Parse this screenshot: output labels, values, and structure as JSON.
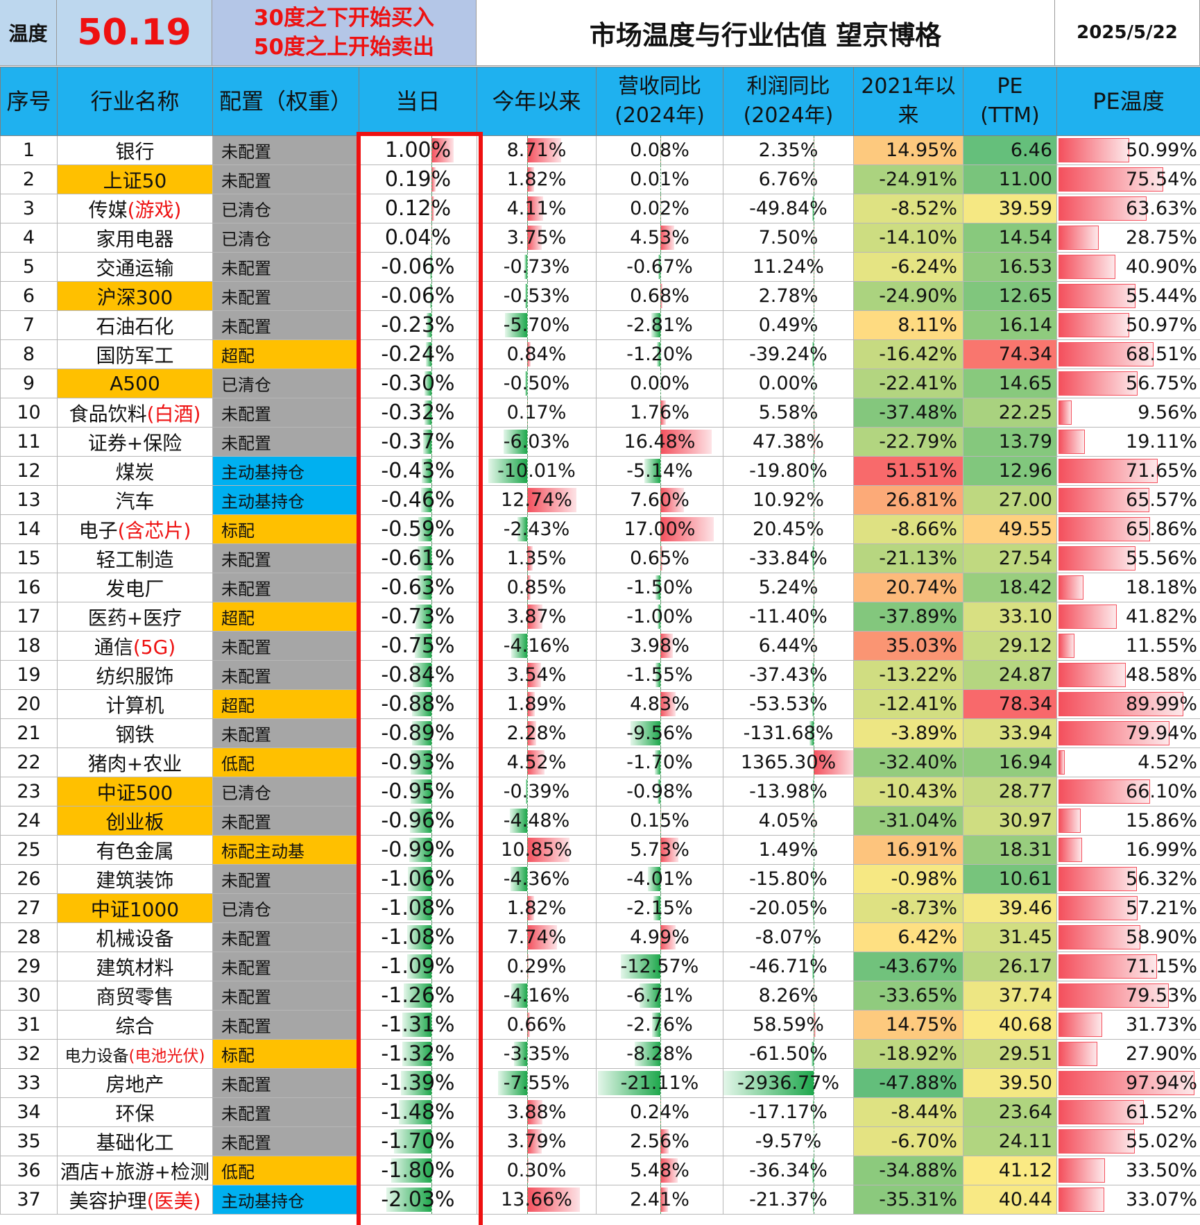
{
  "header": {
    "temp_label": "温度",
    "temp_value": "50.19",
    "rule_line1": "30度之下开始买入",
    "rule_line2": "50度之上开始卖出",
    "title": "市场温度与行业估值 望京博格",
    "date": "2025/5/22"
  },
  "columns": {
    "seq": "序号",
    "name": "行业名称",
    "alloc": "配置（权重）",
    "today": "当日",
    "ytd": "今年以来",
    "rev_1": "营收同比",
    "rev_2": "(2024年)",
    "profit_1": "利润同比",
    "profit_2": "(2024年)",
    "since_1": "2021年以",
    "since_2": "来",
    "pe_1": "PE",
    "pe_2": "(TTM)",
    "pe_temp": "PE温度"
  },
  "colors": {
    "header_blue": "#1fb1ef",
    "temp_red": "#ee1111",
    "yellow": "#ffc000",
    "gray": "#a6a6a6",
    "blue": "#00b0f0",
    "heat_green": "#63be7b",
    "heat_yellow": "#ffeb84",
    "heat_red": "#f8696b"
  },
  "rows": [
    {
      "seq": "1",
      "name": "银行",
      "hl": "",
      "name_yellow": false,
      "alloc": "未配置",
      "alloc_color": "gray",
      "today": "1.00%",
      "ytd": "8.71%",
      "rev": "0.08%",
      "profit": "2.35%",
      "since": "14.95%",
      "pe": "6.46",
      "pe_temp": "50.99%"
    },
    {
      "seq": "2",
      "name": "上证50",
      "hl": "",
      "name_yellow": true,
      "alloc": "未配置",
      "alloc_color": "gray",
      "today": "0.19%",
      "ytd": "1.82%",
      "rev": "0.01%",
      "profit": "6.76%",
      "since": "-24.91%",
      "pe": "11.00",
      "pe_temp": "75.54%"
    },
    {
      "seq": "3",
      "name": "传媒",
      "hl": "(游戏)",
      "name_yellow": false,
      "alloc": "已清仓",
      "alloc_color": "gray",
      "today": "0.12%",
      "ytd": "4.11%",
      "rev": "0.02%",
      "profit": "-49.84%",
      "since": "-8.52%",
      "pe": "39.59",
      "pe_temp": "63.63%"
    },
    {
      "seq": "4",
      "name": "家用电器",
      "hl": "",
      "name_yellow": false,
      "alloc": "已清仓",
      "alloc_color": "gray",
      "today": "0.04%",
      "ytd": "3.75%",
      "rev": "4.53%",
      "profit": "7.50%",
      "since": "-14.10%",
      "pe": "14.54",
      "pe_temp": "28.75%"
    },
    {
      "seq": "5",
      "name": "交通运输",
      "hl": "",
      "name_yellow": false,
      "alloc": "未配置",
      "alloc_color": "gray",
      "today": "-0.06%",
      "ytd": "-0.73%",
      "rev": "-0.67%",
      "profit": "11.24%",
      "since": "-6.24%",
      "pe": "16.53",
      "pe_temp": "40.90%"
    },
    {
      "seq": "6",
      "name": "沪深300",
      "hl": "",
      "name_yellow": true,
      "alloc": "未配置",
      "alloc_color": "gray",
      "today": "-0.06%",
      "ytd": "-0.53%",
      "rev": "0.68%",
      "profit": "2.78%",
      "since": "-24.90%",
      "pe": "12.65",
      "pe_temp": "55.44%"
    },
    {
      "seq": "7",
      "name": "石油石化",
      "hl": "",
      "name_yellow": false,
      "alloc": "未配置",
      "alloc_color": "gray",
      "today": "-0.23%",
      "ytd": "-5.70%",
      "rev": "-2.81%",
      "profit": "0.49%",
      "since": "8.11%",
      "pe": "16.14",
      "pe_temp": "50.97%"
    },
    {
      "seq": "8",
      "name": "国防军工",
      "hl": "",
      "name_yellow": false,
      "alloc": "超配",
      "alloc_color": "yellow",
      "today": "-0.24%",
      "ytd": "0.84%",
      "rev": "-1.20%",
      "profit": "-39.24%",
      "since": "-16.42%",
      "pe": "74.34",
      "pe_temp": "68.51%"
    },
    {
      "seq": "9",
      "name": "A500",
      "hl": "",
      "name_yellow": true,
      "alloc": "已清仓",
      "alloc_color": "gray",
      "today": "-0.30%",
      "ytd": "-0.50%",
      "rev": "0.00%",
      "profit": "0.00%",
      "since": "-22.41%",
      "pe": "14.65",
      "pe_temp": "56.75%"
    },
    {
      "seq": "10",
      "name": "食品饮料",
      "hl": "(白酒)",
      "name_yellow": false,
      "alloc": "未配置",
      "alloc_color": "gray",
      "today": "-0.32%",
      "ytd": "0.17%",
      "rev": "1.76%",
      "profit": "5.58%",
      "since": "-37.48%",
      "pe": "22.25",
      "pe_temp": "9.56%"
    },
    {
      "seq": "11",
      "name": "证券+保险",
      "hl": "",
      "name_yellow": false,
      "alloc": "未配置",
      "alloc_color": "gray",
      "today": "-0.37%",
      "ytd": "-6.03%",
      "rev": "16.48%",
      "profit": "47.38%",
      "since": "-22.79%",
      "pe": "13.79",
      "pe_temp": "19.11%"
    },
    {
      "seq": "12",
      "name": "煤炭",
      "hl": "",
      "name_yellow": false,
      "alloc": "主动基持仓",
      "alloc_color": "blue",
      "today": "-0.43%",
      "ytd": "-10.01%",
      "rev": "-5.14%",
      "profit": "-19.80%",
      "since": "51.51%",
      "pe": "12.96",
      "pe_temp": "71.65%"
    },
    {
      "seq": "13",
      "name": "汽车",
      "hl": "",
      "name_yellow": false,
      "alloc": "主动基持仓",
      "alloc_color": "blue",
      "today": "-0.46%",
      "ytd": "12.74%",
      "rev": "7.60%",
      "profit": "10.92%",
      "since": "26.81%",
      "pe": "27.00",
      "pe_temp": "65.57%"
    },
    {
      "seq": "14",
      "name": "电子",
      "hl": "(含芯片)",
      "name_yellow": false,
      "alloc": "标配",
      "alloc_color": "yellow",
      "today": "-0.59%",
      "ytd": "-2.43%",
      "rev": "17.00%",
      "profit": "20.45%",
      "since": "-8.66%",
      "pe": "49.55",
      "pe_temp": "65.86%"
    },
    {
      "seq": "15",
      "name": "轻工制造",
      "hl": "",
      "name_yellow": false,
      "alloc": "未配置",
      "alloc_color": "gray",
      "today": "-0.61%",
      "ytd": "1.35%",
      "rev": "0.65%",
      "profit": "-33.84%",
      "since": "-21.13%",
      "pe": "27.54",
      "pe_temp": "55.56%"
    },
    {
      "seq": "16",
      "name": "发电厂",
      "hl": "",
      "name_yellow": false,
      "alloc": "未配置",
      "alloc_color": "gray",
      "today": "-0.63%",
      "ytd": "0.85%",
      "rev": "-1.50%",
      "profit": "5.24%",
      "since": "20.74%",
      "pe": "18.42",
      "pe_temp": "18.18%"
    },
    {
      "seq": "17",
      "name": "医药+医疗",
      "hl": "",
      "name_yellow": false,
      "alloc": "超配",
      "alloc_color": "yellow",
      "today": "-0.73%",
      "ytd": "3.87%",
      "rev": "-1.00%",
      "profit": "-11.40%",
      "since": "-37.89%",
      "pe": "33.10",
      "pe_temp": "41.82%"
    },
    {
      "seq": "18",
      "name": "通信",
      "hl": "(5G)",
      "name_yellow": false,
      "alloc": "未配置",
      "alloc_color": "gray",
      "today": "-0.75%",
      "ytd": "-4.16%",
      "rev": "3.98%",
      "profit": "6.44%",
      "since": "35.03%",
      "pe": "29.12",
      "pe_temp": "11.55%"
    },
    {
      "seq": "19",
      "name": "纺织服饰",
      "hl": "",
      "name_yellow": false,
      "alloc": "未配置",
      "alloc_color": "gray",
      "today": "-0.84%",
      "ytd": "3.54%",
      "rev": "-1.55%",
      "profit": "-37.43%",
      "since": "-13.22%",
      "pe": "24.87",
      "pe_temp": "48.58%"
    },
    {
      "seq": "20",
      "name": "计算机",
      "hl": "",
      "name_yellow": false,
      "alloc": "超配",
      "alloc_color": "yellow",
      "today": "-0.88%",
      "ytd": "1.89%",
      "rev": "4.83%",
      "profit": "-53.53%",
      "since": "-12.41%",
      "pe": "78.34",
      "pe_temp": "89.99%"
    },
    {
      "seq": "21",
      "name": "钢铁",
      "hl": "",
      "name_yellow": false,
      "alloc": "未配置",
      "alloc_color": "gray",
      "today": "-0.89%",
      "ytd": "2.28%",
      "rev": "-9.56%",
      "profit": "-131.68%",
      "since": "-3.89%",
      "pe": "33.94",
      "pe_temp": "79.94%"
    },
    {
      "seq": "22",
      "name": "猪肉+农业",
      "hl": "",
      "name_yellow": false,
      "alloc": "低配",
      "alloc_color": "yellow",
      "today": "-0.93%",
      "ytd": "4.52%",
      "rev": "-1.70%",
      "profit": "1365.30%",
      "since": "-32.40%",
      "pe": "16.94",
      "pe_temp": "4.52%"
    },
    {
      "seq": "23",
      "name": "中证500",
      "hl": "",
      "name_yellow": true,
      "alloc": "已清仓",
      "alloc_color": "gray",
      "today": "-0.95%",
      "ytd": "-0.39%",
      "rev": "-0.98%",
      "profit": "-13.98%",
      "since": "-10.43%",
      "pe": "28.77",
      "pe_temp": "66.10%"
    },
    {
      "seq": "24",
      "name": "创业板",
      "hl": "",
      "name_yellow": true,
      "alloc": "未配置",
      "alloc_color": "gray",
      "today": "-0.96%",
      "ytd": "-4.48%",
      "rev": "0.15%",
      "profit": "4.05%",
      "since": "-31.04%",
      "pe": "30.97",
      "pe_temp": "15.86%"
    },
    {
      "seq": "25",
      "name": "有色金属",
      "hl": "",
      "name_yellow": false,
      "alloc": "标配主动基",
      "alloc_color": "yellow",
      "today": "-0.99%",
      "ytd": "10.85%",
      "rev": "5.73%",
      "profit": "1.49%",
      "since": "16.91%",
      "pe": "18.31",
      "pe_temp": "16.99%"
    },
    {
      "seq": "26",
      "name": "建筑装饰",
      "hl": "",
      "name_yellow": false,
      "alloc": "未配置",
      "alloc_color": "gray",
      "today": "-1.06%",
      "ytd": "-4.36%",
      "rev": "-4.01%",
      "profit": "-15.80%",
      "since": "-0.98%",
      "pe": "10.61",
      "pe_temp": "56.32%"
    },
    {
      "seq": "27",
      "name": "中证1000",
      "hl": "",
      "name_yellow": true,
      "alloc": "已清仓",
      "alloc_color": "gray",
      "today": "-1.08%",
      "ytd": "1.82%",
      "rev": "-2.15%",
      "profit": "-20.05%",
      "since": "-8.73%",
      "pe": "39.46",
      "pe_temp": "57.21%"
    },
    {
      "seq": "28",
      "name": "机械设备",
      "hl": "",
      "name_yellow": false,
      "alloc": "未配置",
      "alloc_color": "gray",
      "today": "-1.08%",
      "ytd": "7.74%",
      "rev": "4.99%",
      "profit": "-8.07%",
      "since": "6.42%",
      "pe": "31.45",
      "pe_temp": "58.90%"
    },
    {
      "seq": "29",
      "name": "建筑材料",
      "hl": "",
      "name_yellow": false,
      "alloc": "未配置",
      "alloc_color": "gray",
      "today": "-1.09%",
      "ytd": "0.29%",
      "rev": "-12.57%",
      "profit": "-46.71%",
      "since": "-43.67%",
      "pe": "26.17",
      "pe_temp": "71.15%"
    },
    {
      "seq": "30",
      "name": "商贸零售",
      "hl": "",
      "name_yellow": false,
      "alloc": "未配置",
      "alloc_color": "gray",
      "today": "-1.26%",
      "ytd": "-4.16%",
      "rev": "-6.71%",
      "profit": "8.26%",
      "since": "-33.65%",
      "pe": "37.74",
      "pe_temp": "79.53%"
    },
    {
      "seq": "31",
      "name": "综合",
      "hl": "",
      "name_yellow": false,
      "alloc": "未配置",
      "alloc_color": "gray",
      "today": "-1.31%",
      "ytd": "0.66%",
      "rev": "-2.76%",
      "profit": "58.59%",
      "since": "14.75%",
      "pe": "40.68",
      "pe_temp": "31.73%"
    },
    {
      "seq": "32",
      "name": "电力设备",
      "hl": "(电池光伏)",
      "name_yellow": false,
      "alloc": "标配",
      "alloc_color": "yellow",
      "today": "-1.32%",
      "ytd": "-3.35%",
      "rev": "-8.28%",
      "profit": "-61.50%",
      "since": "-18.92%",
      "pe": "29.51",
      "pe_temp": "27.90%"
    },
    {
      "seq": "33",
      "name": "房地产",
      "hl": "",
      "name_yellow": false,
      "alloc": "未配置",
      "alloc_color": "gray",
      "today": "-1.39%",
      "ytd": "-7.55%",
      "rev": "-21.11%",
      "profit": "-2936.77%",
      "since": "-47.88%",
      "pe": "39.50",
      "pe_temp": "97.94%"
    },
    {
      "seq": "34",
      "name": "环保",
      "hl": "",
      "name_yellow": false,
      "alloc": "未配置",
      "alloc_color": "gray",
      "today": "-1.48%",
      "ytd": "3.88%",
      "rev": "0.24%",
      "profit": "-17.17%",
      "since": "-8.44%",
      "pe": "23.64",
      "pe_temp": "61.52%"
    },
    {
      "seq": "35",
      "name": "基础化工",
      "hl": "",
      "name_yellow": false,
      "alloc": "未配置",
      "alloc_color": "gray",
      "today": "-1.70%",
      "ytd": "3.79%",
      "rev": "2.56%",
      "profit": "-9.57%",
      "since": "-6.70%",
      "pe": "24.11",
      "pe_temp": "55.02%"
    },
    {
      "seq": "36",
      "name": "酒店+旅游+检测",
      "hl": "",
      "name_yellow": false,
      "alloc": "低配",
      "alloc_color": "yellow",
      "today": "-1.80%",
      "ytd": "0.30%",
      "rev": "5.48%",
      "profit": "-36.34%",
      "since": "-34.88%",
      "pe": "41.12",
      "pe_temp": "33.50%"
    },
    {
      "seq": "37",
      "name": "美容护理",
      "hl": "(医美)",
      "name_yellow": false,
      "alloc": "主动基持仓",
      "alloc_color": "blue",
      "today": "-2.03%",
      "ytd": "13.66%",
      "rev": "2.41%",
      "profit": "-21.37%",
      "since": "-35.31%",
      "pe": "40.44",
      "pe_temp": "33.07%"
    }
  ]
}
